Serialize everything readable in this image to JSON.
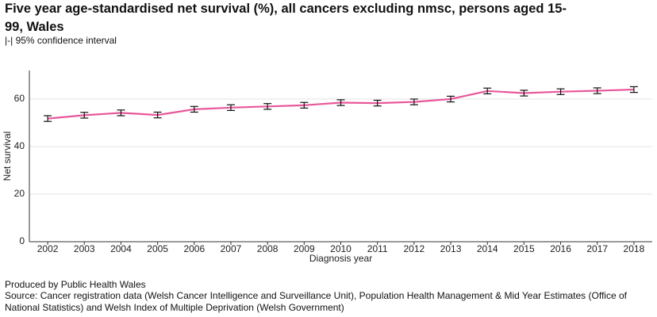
{
  "chart_data": {
    "type": "line",
    "title": "Five year age-standardised net survival (%), all cancers excluding nmsc, persons aged 15-99, Wales",
    "subtitle": "|-| 95% confidence interval",
    "x_label": "Diagnosis year",
    "y_label": "Net survival",
    "categories": [
      "2002",
      "2003",
      "2004",
      "2005",
      "2006",
      "2007",
      "2008",
      "2009",
      "2010",
      "2011",
      "2012",
      "2013",
      "2014",
      "2015",
      "2016",
      "2017",
      "2018"
    ],
    "series": [
      {
        "name": "Net survival",
        "color": "#e8589a",
        "values": [
          51.8,
          53.2,
          54.2,
          53.3,
          55.7,
          56.4,
          56.9,
          57.4,
          58.5,
          58.3,
          58.8,
          60.0,
          63.4,
          62.5,
          63.1,
          63.5,
          64.0
        ],
        "errors": [
          1.2,
          1.2,
          1.2,
          1.2,
          1.2,
          1.2,
          1.2,
          1.2,
          1.2,
          1.2,
          1.2,
          1.2,
          1.2,
          1.2,
          1.2,
          1.2,
          1.2
        ]
      }
    ],
    "ylim": [
      0,
      72
    ],
    "yticks": [
      0,
      20,
      40,
      60
    ],
    "grid": true,
    "footer": "Produced by Public Health Wales",
    "source": "Source: Cancer registration data (Welsh Cancer Intelligence and Surveillance Unit), Population Health Management & Mid Year Estimates (Office of National Statistics) and Welsh Index of Multiple Deprivation (Welsh Government)"
  }
}
